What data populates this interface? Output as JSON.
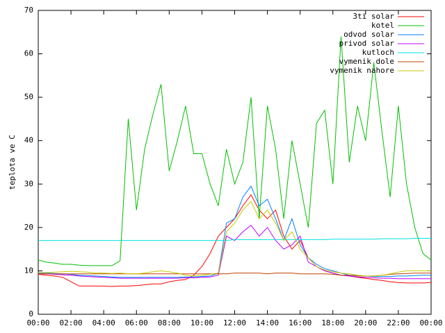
{
  "chart_data": {
    "type": "line",
    "y_label": "teplota ve C",
    "x": [
      0,
      0.5,
      1,
      1.5,
      2,
      2.5,
      3,
      3.5,
      4,
      4.5,
      5,
      5.5,
      6,
      6.5,
      7,
      7.5,
      8,
      8.5,
      9,
      9.5,
      10,
      10.5,
      11,
      11.5,
      12,
      12.5,
      13,
      13.5,
      14,
      14.5,
      15,
      15.5,
      16,
      16.5,
      17,
      17.5,
      18,
      18.5,
      19,
      19.5,
      20,
      20.5,
      21,
      21.5,
      22,
      22.5,
      23,
      23.5,
      24
    ],
    "xlim": [
      0,
      24
    ],
    "xticks": [
      {
        "value": 0,
        "label": "00:00"
      },
      {
        "value": 2,
        "label": "02:00"
      },
      {
        "value": 4,
        "label": "04:00"
      },
      {
        "value": 6,
        "label": "06:00"
      },
      {
        "value": 8,
        "label": "08:00"
      },
      {
        "value": 10,
        "label": "10:00"
      },
      {
        "value": 12,
        "label": "12:00"
      },
      {
        "value": 14,
        "label": "14:00"
      },
      {
        "value": 16,
        "label": "16:00"
      },
      {
        "value": 18,
        "label": "18:00"
      },
      {
        "value": 20,
        "label": "20:00"
      },
      {
        "value": 22,
        "label": "22:00"
      },
      {
        "value": 24,
        "label": "00:00"
      }
    ],
    "ylim": [
      0,
      70
    ],
    "yticks": [
      0,
      10,
      20,
      30,
      40,
      50,
      60,
      70
    ],
    "legend": "top-right",
    "series": [
      {
        "name": "3ti solar",
        "color": "#ff0000",
        "values": [
          9.2,
          9,
          8.8,
          8.5,
          7.5,
          6.5,
          6.5,
          6.5,
          6.5,
          6.4,
          6.5,
          6.5,
          6.6,
          6.8,
          7,
          7,
          7.5,
          7.8,
          8,
          9,
          11,
          14,
          18,
          20,
          22,
          25,
          27.5,
          24,
          22,
          24,
          18,
          15,
          17,
          13,
          11,
          10,
          9.5,
          9,
          8.8,
          8.5,
          8.3,
          8,
          7.8,
          7.5,
          7.3,
          7.2,
          7.2,
          7.2,
          7.3
        ]
      },
      {
        "name": "kotel",
        "color": "#00c000",
        "values": [
          12.5,
          12,
          11.8,
          11.5,
          11.5,
          11.3,
          11.2,
          11.2,
          11.2,
          11.2,
          12.3,
          45,
          24,
          38,
          46,
          53,
          33,
          40,
          48,
          37,
          37,
          30,
          25,
          38,
          30,
          35,
          50,
          22,
          48,
          38,
          22,
          40,
          30,
          20,
          44,
          47,
          30,
          64,
          35,
          48,
          40,
          58,
          42,
          27,
          48,
          30,
          20,
          14,
          12.5
        ]
      },
      {
        "name": "odvod solar",
        "color": "#0080ff",
        "values": [
          9.5,
          9.5,
          9.4,
          9.3,
          9.2,
          9,
          8.9,
          8.8,
          8.7,
          8.6,
          8.5,
          8.5,
          8.5,
          8.5,
          8.5,
          8.5,
          8.5,
          8.5,
          8.6,
          8.6,
          8.7,
          8.8,
          9.5,
          21,
          22,
          27,
          29.5,
          25,
          26.5,
          22,
          17,
          22,
          16,
          13,
          11.5,
          10.5,
          10,
          9.5,
          9,
          9,
          8.8,
          8.7,
          8.7,
          8.7,
          8.8,
          8.8,
          8.9,
          9,
          9
        ]
      },
      {
        "name": "privod solar",
        "color": "#c000ff",
        "values": [
          9.3,
          9.3,
          9.2,
          9.1,
          9,
          8.8,
          8.7,
          8.6,
          8.5,
          8.4,
          8.3,
          8.3,
          8.3,
          8.3,
          8.3,
          8.3,
          8.3,
          8.3,
          8.4,
          8.4,
          8.5,
          8.6,
          9,
          18,
          17,
          19,
          20.5,
          18,
          20,
          17,
          15,
          16,
          18,
          12,
          11,
          10,
          9.5,
          9,
          8.8,
          8.6,
          8.5,
          8.4,
          8.3,
          8.3,
          8.2,
          8.2,
          8.2,
          8.2,
          8.2
        ]
      },
      {
        "name": "kutloch",
        "color": "#00e0e0",
        "values": [
          17,
          17,
          17,
          17,
          17,
          17,
          17,
          17,
          17,
          17,
          17,
          17,
          17,
          17,
          17,
          17,
          17,
          17,
          17,
          17,
          17,
          17,
          17,
          17,
          17.2,
          17.2,
          17.2,
          17.2,
          17.2,
          17.2,
          17.2,
          17.2,
          17.2,
          17.2,
          17.2,
          17.2,
          17.3,
          17.3,
          17.3,
          17.3,
          17.3,
          17.3,
          17.4,
          17.4,
          17.4,
          17.4,
          17.5,
          17.5,
          17.5
        ]
      },
      {
        "name": "vymenik dole",
        "color": "#c04000",
        "values": [
          9.3,
          9.3,
          9.3,
          9.3,
          9.3,
          9.3,
          9.3,
          9.3,
          9.3,
          9.3,
          9.3,
          9.3,
          9.3,
          9.3,
          9.3,
          9.3,
          9.3,
          9.3,
          9.3,
          9.3,
          9.3,
          9.3,
          9.3,
          9.3,
          9.5,
          9.5,
          9.5,
          9.5,
          9.3,
          9.5,
          9.5,
          9.5,
          9.3,
          9.3,
          9.3,
          9.3,
          9.2,
          9,
          9,
          8.8,
          8.8,
          8.8,
          9,
          9.2,
          9.3,
          9.4,
          9.5,
          9.5,
          9.5
        ]
      },
      {
        "name": "vymenik nahore",
        "color": "#c8c800",
        "values": [
          9.6,
          9.6,
          9.7,
          9.8,
          9.9,
          9.8,
          9.7,
          9.5,
          9.5,
          9.4,
          9.5,
          9.3,
          9.3,
          9.5,
          9.8,
          10,
          9.8,
          9.5,
          9,
          8.8,
          9,
          9.2,
          9.5,
          19,
          21,
          24,
          26,
          22,
          24,
          21,
          17,
          19,
          15,
          13,
          11,
          10.2,
          9.8,
          9.5,
          9.3,
          9,
          8.8,
          8.8,
          9,
          9.3,
          9.7,
          10,
          10,
          10,
          10
        ]
      }
    ]
  }
}
